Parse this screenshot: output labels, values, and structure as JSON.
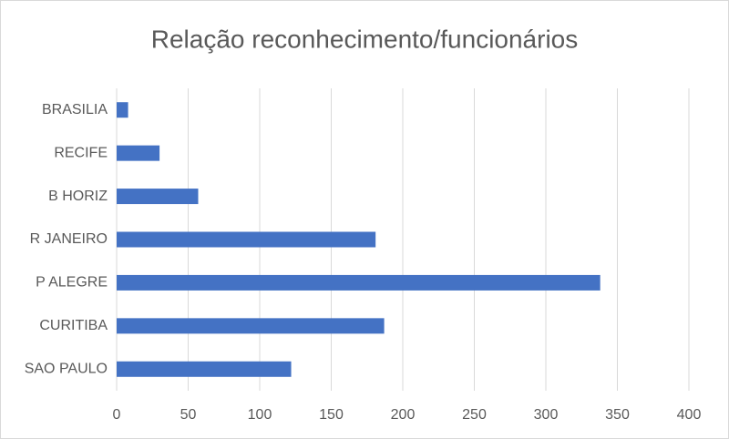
{
  "chart_data": {
    "type": "bar",
    "orientation": "horizontal",
    "title": "Relação reconhecimento/funcionários",
    "categories": [
      "BRASILIA",
      "RECIFE",
      "B HORIZ",
      "R JANEIRO",
      "P ALEGRE",
      "CURITIBA",
      "SAO PAULO"
    ],
    "values": [
      8,
      30,
      57,
      181,
      338,
      187,
      122
    ],
    "color": "#4472c4",
    "xlim": [
      0,
      400
    ],
    "xticks": [
      0,
      50,
      100,
      150,
      200,
      250,
      300,
      350,
      400
    ],
    "grid": true
  }
}
